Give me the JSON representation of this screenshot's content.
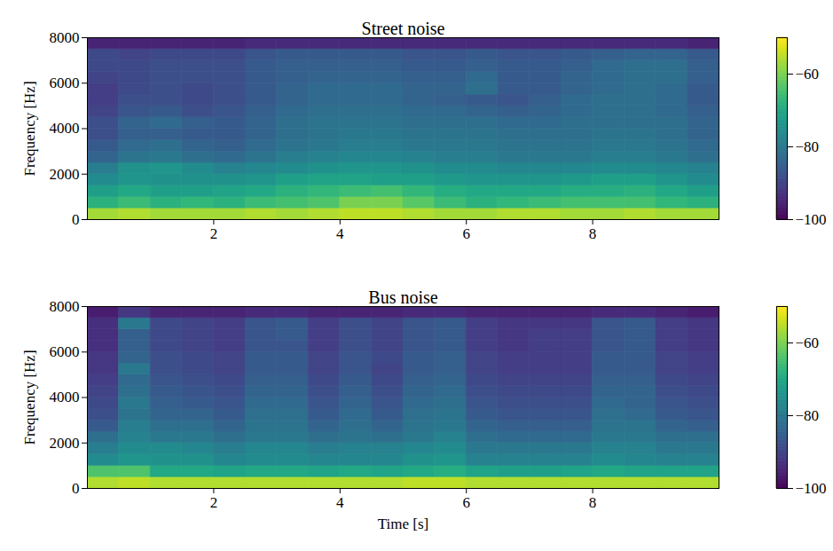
{
  "chart_data": [
    {
      "type": "heatmap",
      "title": "Street noise",
      "y_label": "Frequency [Hz]",
      "xlim": [
        0,
        10
      ],
      "xticks": [
        2,
        4,
        6,
        8
      ],
      "ylim": [
        0,
        8000
      ],
      "yticks": [
        0,
        2000,
        4000,
        6000,
        8000
      ],
      "x_bins": [
        0,
        0.5,
        1,
        1.5,
        2,
        2.5,
        3,
        3.5,
        4,
        4.5,
        5,
        5.5,
        6,
        6.5,
        7,
        7.5,
        8,
        8.5,
        9,
        9.5,
        10
      ],
      "y_bins": [
        0,
        500,
        1000,
        1500,
        2000,
        2500,
        3000,
        3500,
        4000,
        4500,
        5000,
        5500,
        6000,
        6500,
        7000,
        7500,
        8000
      ],
      "values": [
        [
          -57,
          -56,
          -57,
          -57,
          -57,
          -56,
          -57,
          -56,
          -55,
          -55,
          -56,
          -57,
          -57,
          -56,
          -56,
          -57,
          -57,
          -56,
          -57,
          -57
        ],
        [
          -68,
          -66,
          -68,
          -67,
          -68,
          -66,
          -65,
          -64,
          -60,
          -60,
          -63,
          -66,
          -68,
          -67,
          -66,
          -65,
          -65,
          -65,
          -67,
          -68
        ],
        [
          -72,
          -70,
          -72,
          -72,
          -71,
          -70,
          -68,
          -67,
          -66,
          -65,
          -67,
          -69,
          -70,
          -70,
          -70,
          -69,
          -69,
          -68,
          -70,
          -72
        ],
        [
          -76,
          -74,
          -75,
          -75,
          -75,
          -74,
          -72,
          -71,
          -71,
          -72,
          -72,
          -73,
          -74,
          -74,
          -74,
          -73,
          -72,
          -72,
          -74,
          -76
        ],
        [
          -79,
          -75,
          -74,
          -76,
          -78,
          -77,
          -76,
          -75,
          -74,
          -74,
          -75,
          -76,
          -76,
          -77,
          -77,
          -77,
          -76,
          -76,
          -77,
          -78
        ],
        [
          -84,
          -81,
          -80,
          -82,
          -83,
          -81,
          -79,
          -78,
          -77,
          -77,
          -78,
          -79,
          -79,
          -80,
          -80,
          -80,
          -79,
          -79,
          -80,
          -82
        ],
        [
          -86,
          -83,
          -82,
          -84,
          -85,
          -83,
          -81,
          -80,
          -79,
          -79,
          -80,
          -80,
          -80,
          -81,
          -81,
          -81,
          -80,
          -80,
          -81,
          -83
        ],
        [
          -88,
          -85,
          -85,
          -86,
          -86,
          -84,
          -82,
          -81,
          -80,
          -80,
          -81,
          -81,
          -81,
          -82,
          -82,
          -82,
          -81,
          -81,
          -82,
          -84
        ],
        [
          -88,
          -84,
          -83,
          -85,
          -86,
          -84,
          -82,
          -81,
          -81,
          -81,
          -82,
          -82,
          -82,
          -83,
          -83,
          -82,
          -82,
          -82,
          -82,
          -84
        ],
        [
          -90,
          -87,
          -86,
          -88,
          -87,
          -85,
          -83,
          -82,
          -82,
          -82,
          -83,
          -83,
          -84,
          -85,
          -84,
          -83,
          -82,
          -82,
          -83,
          -85
        ],
        [
          -91,
          -88,
          -88,
          -89,
          -88,
          -86,
          -84,
          -83,
          -83,
          -83,
          -84,
          -85,
          -86,
          -87,
          -85,
          -83,
          -82,
          -82,
          -83,
          -86
        ],
        [
          -91,
          -89,
          -88,
          -89,
          -88,
          -86,
          -84,
          -83,
          -83,
          -83,
          -84,
          -84,
          -82,
          -86,
          -86,
          -84,
          -83,
          -82,
          -83,
          -86
        ],
        [
          -90,
          -89,
          -88,
          -88,
          -88,
          -86,
          -85,
          -84,
          -84,
          -84,
          -85,
          -85,
          -83,
          -86,
          -86,
          -84,
          -83,
          -82,
          -82,
          -85
        ],
        [
          -89,
          -89,
          -88,
          -88,
          -88,
          -86,
          -85,
          -85,
          -85,
          -85,
          -86,
          -86,
          -85,
          -86,
          -86,
          -85,
          -83,
          -82,
          -82,
          -85
        ],
        [
          -89,
          -90,
          -89,
          -89,
          -89,
          -87,
          -86,
          -86,
          -86,
          -86,
          -87,
          -87,
          -86,
          -87,
          -87,
          -86,
          -85,
          -84,
          -84,
          -86
        ],
        [
          -95,
          -95,
          -95,
          -95,
          -95,
          -94,
          -94,
          -94,
          -94,
          -94,
          -94,
          -94,
          -94,
          -94,
          -94,
          -94,
          -94,
          -94,
          -94,
          -95
        ]
      ],
      "colorbar": {
        "range": [
          -100,
          -50
        ],
        "ticks": [
          -60,
          -80,
          -100
        ]
      }
    },
    {
      "type": "heatmap",
      "title": "Bus noise",
      "x_label": "Time [s]",
      "y_label": "Frequency [Hz]",
      "xlim": [
        0,
        10
      ],
      "xticks": [
        2,
        4,
        6,
        8
      ],
      "ylim": [
        0,
        8000
      ],
      "yticks": [
        0,
        2000,
        4000,
        6000,
        8000
      ],
      "x_bins": [
        0,
        0.5,
        1,
        1.5,
        2,
        2.5,
        3,
        3.5,
        4,
        4.5,
        5,
        5.5,
        6,
        6.5,
        7,
        7.5,
        8,
        8.5,
        9,
        9.5,
        10
      ],
      "y_bins": [
        0,
        500,
        1000,
        1500,
        2000,
        2500,
        3000,
        3500,
        4000,
        4500,
        5000,
        5500,
        6000,
        6500,
        7000,
        7500,
        8000
      ],
      "values": [
        [
          -56,
          -55,
          -56,
          -56,
          -56,
          -56,
          -56,
          -56,
          -56,
          -56,
          -55,
          -55,
          -56,
          -56,
          -56,
          -56,
          -56,
          -56,
          -56,
          -56
        ],
        [
          -64,
          -64,
          -70,
          -70,
          -71,
          -70,
          -70,
          -71,
          -70,
          -71,
          -70,
          -69,
          -71,
          -72,
          -72,
          -71,
          -70,
          -71,
          -71,
          -71
        ],
        [
          -76,
          -74,
          -75,
          -75,
          -77,
          -76,
          -76,
          -77,
          -77,
          -77,
          -75,
          -74,
          -78,
          -78,
          -78,
          -78,
          -76,
          -77,
          -78,
          -78
        ],
        [
          -79,
          -76,
          -76,
          -77,
          -79,
          -77,
          -77,
          -79,
          -78,
          -78,
          -77,
          -76,
          -80,
          -80,
          -80,
          -80,
          -78,
          -78,
          -80,
          -80
        ],
        [
          -82,
          -78,
          -80,
          -80,
          -82,
          -80,
          -80,
          -82,
          -81,
          -82,
          -80,
          -78,
          -82,
          -83,
          -83,
          -83,
          -80,
          -80,
          -82,
          -82
        ],
        [
          -86,
          -79,
          -82,
          -82,
          -84,
          -81,
          -81,
          -84,
          -82,
          -84,
          -81,
          -80,
          -84,
          -85,
          -85,
          -85,
          -81,
          -81,
          -84,
          -85
        ],
        [
          -88,
          -81,
          -84,
          -84,
          -86,
          -82,
          -82,
          -86,
          -83,
          -86,
          -82,
          -81,
          -86,
          -87,
          -87,
          -87,
          -82,
          -83,
          -86,
          -87
        ],
        [
          -89,
          -80,
          -85,
          -86,
          -87,
          -83,
          -83,
          -87,
          -84,
          -87,
          -83,
          -82,
          -87,
          -88,
          -88,
          -88,
          -83,
          -84,
          -87,
          -88
        ],
        [
          -90,
          -82,
          -86,
          -87,
          -88,
          -84,
          -84,
          -88,
          -85,
          -88,
          -84,
          -83,
          -88,
          -89,
          -89,
          -89,
          -84,
          -84,
          -88,
          -89
        ],
        [
          -91,
          -83,
          -87,
          -88,
          -89,
          -85,
          -85,
          -89,
          -86,
          -89,
          -85,
          -84,
          -89,
          -90,
          -90,
          -90,
          -85,
          -85,
          -89,
          -90
        ],
        [
          -92,
          -80,
          -88,
          -89,
          -90,
          -86,
          -86,
          -90,
          -87,
          -90,
          -86,
          -85,
          -90,
          -91,
          -91,
          -91,
          -86,
          -86,
          -90,
          -91
        ],
        [
          -92,
          -84,
          -88,
          -89,
          -90,
          -86,
          -86,
          -90,
          -87,
          -89,
          -86,
          -85,
          -90,
          -91,
          -91,
          -91,
          -86,
          -86,
          -90,
          -91
        ],
        [
          -93,
          -85,
          -89,
          -90,
          -91,
          -87,
          -87,
          -91,
          -88,
          -90,
          -87,
          -86,
          -91,
          -92,
          -91,
          -91,
          -87,
          -86,
          -91,
          -92
        ],
        [
          -93,
          -85,
          -89,
          -90,
          -91,
          -87,
          -86,
          -91,
          -88,
          -90,
          -87,
          -86,
          -91,
          -92,
          -91,
          -91,
          -87,
          -86,
          -91,
          -92
        ],
        [
          -93,
          -80,
          -89,
          -90,
          -91,
          -87,
          -86,
          -91,
          -88,
          -90,
          -87,
          -86,
          -91,
          -92,
          -92,
          -92,
          -87,
          -86,
          -91,
          -92
        ],
        [
          -96,
          -92,
          -95,
          -95,
          -95,
          -94,
          -94,
          -95,
          -95,
          -95,
          -94,
          -94,
          -95,
          -95,
          -95,
          -95,
          -94,
          -94,
          -95,
          -96
        ]
      ],
      "colorbar": {
        "range": [
          -100,
          -50
        ],
        "ticks": [
          -60,
          -80,
          -100
        ]
      }
    }
  ]
}
